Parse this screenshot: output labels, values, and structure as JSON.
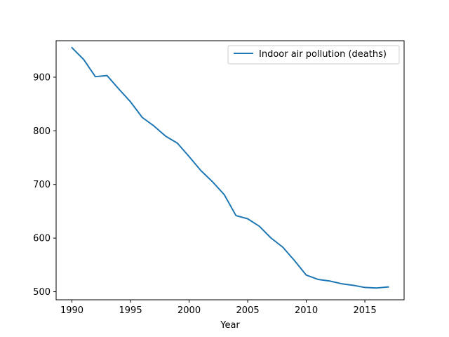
{
  "chart_data": {
    "type": "line",
    "title": "",
    "xlabel": "Year",
    "ylabel": "",
    "xlim": [
      1988.65,
      2018.35
    ],
    "ylim": [
      485,
      968
    ],
    "xticks": [
      1990,
      1995,
      2000,
      2005,
      2010,
      2015
    ],
    "yticks": [
      500,
      600,
      700,
      800,
      900
    ],
    "grid": false,
    "legend_position": "top-right",
    "x": [
      1990,
      1991,
      1992,
      1993,
      1994,
      1995,
      1996,
      1997,
      1998,
      1999,
      2000,
      2001,
      2002,
      2003,
      2004,
      2005,
      2006,
      2007,
      2008,
      2009,
      2010,
      2011,
      2012,
      2013,
      2014,
      2015,
      2016,
      2017
    ],
    "series": [
      {
        "name": "Indoor air pollution (deaths)",
        "color": "#1f77b4",
        "values": [
          955,
          933,
          901,
          903,
          878,
          854,
          825,
          809,
          790,
          777,
          752,
          726,
          705,
          681,
          642,
          636,
          622,
          600,
          583,
          558,
          531,
          523,
          520,
          515,
          512,
          508,
          507,
          509
        ]
      }
    ]
  }
}
